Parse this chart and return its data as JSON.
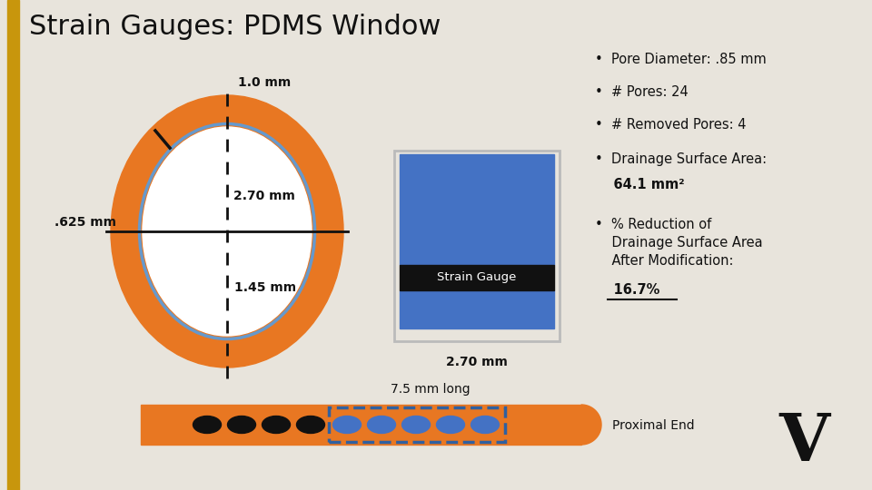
{
  "title": "Strain Gauges: PDMS Window",
  "bg_color": "#e8e4dc",
  "gold_bar_color": "#c8960c",
  "orange_color": "#E87722",
  "blue_color": "#4472C4",
  "black_color": "#111111",
  "white_color": "#ffffff",
  "dark_blue_border": "#3060a0",
  "labels": {
    "r1": "1.0 mm",
    "r2": "2.70 mm",
    "r3": ".625 mm",
    "r4": "1.45 mm",
    "sg": "Strain Gauge",
    "sg_width": "2.70 mm",
    "length": "7.5 mm long",
    "proximal": "Proximal End"
  }
}
